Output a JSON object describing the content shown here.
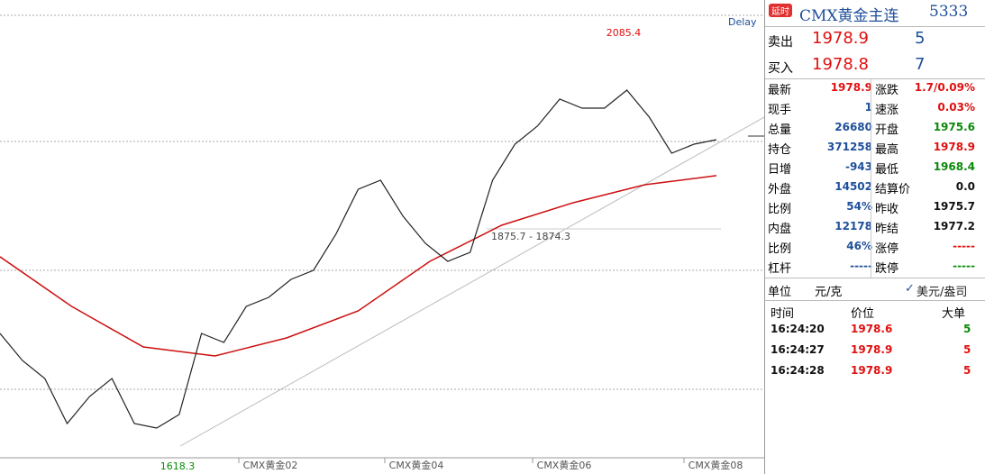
{
  "chart": {
    "delay": "Delay",
    "high": 2085.4,
    "low": 1618.3,
    "range_label": "1875.7 - 1874.3",
    "x_labels": [
      "CMX黄金02",
      "CMX黄金04",
      "CMX黄金06",
      "CMX黄金08"
    ],
    "close": [
      1754.5,
      1724.2,
      1704.1,
      1653.6,
      1683.9,
      1704.1,
      1653.6,
      1648.6,
      1663.7,
      1754.5,
      1744.4,
      1784.8,
      1794.9,
      1815.0,
      1825.1,
      1865.5,
      1915.9,
      1926.0,
      1885.7,
      1855.4,
      1835.2,
      1845.3,
      1926.0,
      1966.4,
      1986.5,
      2016.8,
      2006.7,
      2006.7,
      2026.9,
      1996.6,
      1956.3,
      1966.4,
      1971.4
    ],
    "close_color": "#222222",
    "ma": [
      1840.3,
      1784.8,
      1739.4,
      1729.3,
      1749.5,
      1779.7,
      1835.2,
      1875.6,
      1900.8,
      1921.0,
      1931.1
    ],
    "ma_color": "#cc1010"
  },
  "quote": {
    "badge": "延时",
    "name": "CMX黄金主连",
    "code": "5333",
    "book": [
      {
        "label": "卖出",
        "price": "1978.9",
        "volume": "5"
      },
      {
        "label": "买入",
        "price": "1978.8",
        "volume": "7"
      }
    ],
    "stats": [
      [
        {
          "label": "最新",
          "value": "1978.9",
          "color": "#e01010"
        },
        {
          "label": "涨跌",
          "value": "1.7/0.09%",
          "color": "#e01010"
        }
      ],
      [
        {
          "label": "现手",
          "value": "1",
          "color": "#1e4f9a"
        },
        {
          "label": "速涨",
          "value": "0.03%",
          "color": "#e01010"
        }
      ],
      [
        {
          "label": "总量",
          "value": "26680",
          "color": "#1e4f9a"
        },
        {
          "label": "开盘",
          "value": "1975.6",
          "color": "#0a8a0a"
        }
      ],
      [
        {
          "label": "持仓",
          "value": "371258",
          "color": "#1e4f9a"
        },
        {
          "label": "最高",
          "value": "1978.9",
          "color": "#e01010"
        }
      ],
      [
        {
          "label": "日增",
          "value": "-943",
          "color": "#1e4f9a"
        },
        {
          "label": "最低",
          "value": "1968.4",
          "color": "#0a8a0a"
        }
      ],
      [
        {
          "label": "外盘",
          "value": "14502",
          "color": "#1e4f9a"
        },
        {
          "label": "结算价",
          "value": "0.0",
          "color": "#111111"
        }
      ],
      [
        {
          "label": "比例",
          "value": "54%",
          "color": "#1e4f9a"
        },
        {
          "label": "昨收",
          "value": "1975.7",
          "color": "#111111"
        }
      ],
      [
        {
          "label": "内盘",
          "value": "12178",
          "color": "#1e4f9a"
        },
        {
          "label": "昨结",
          "value": "1977.2",
          "color": "#111111"
        }
      ],
      [
        {
          "label": "比例",
          "value": "46%",
          "color": "#1e4f9a"
        },
        {
          "label": "涨停",
          "value": "-----",
          "color": "#e01010"
        }
      ],
      [
        {
          "label": "杠杆",
          "value": "-----",
          "color": "#1e4f9a"
        },
        {
          "label": "跌停",
          "value": "-----",
          "color": "#0a8a0a"
        }
      ]
    ],
    "unit": {
      "label": "单位",
      "value": "元/克",
      "option": "美元/盎司"
    },
    "trades": {
      "header": [
        "时间",
        "价位",
        "大单"
      ],
      "rows": [
        [
          "16:24:20",
          "1978.6",
          "5"
        ],
        [
          "16:24:27",
          "1978.9",
          "5"
        ],
        [
          "16:24:28",
          "1978.9",
          "5"
        ]
      ]
    }
  }
}
